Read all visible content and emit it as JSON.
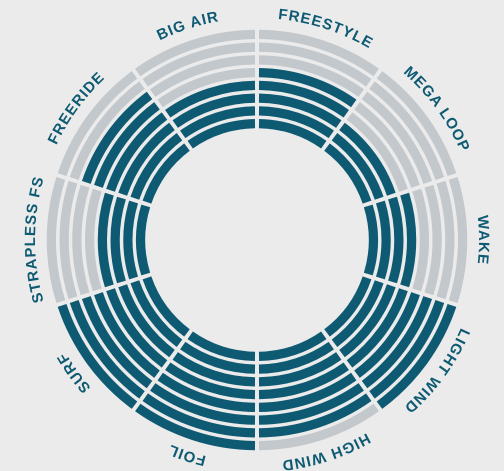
{
  "chart_data": {
    "type": "radial-rating",
    "categories": [
      "FREESTYLE",
      "MEGA LOOP",
      "WAKE",
      "LIGHT WIND",
      "HIGH WIND",
      "FOIL",
      "SURF",
      "STRAPLESS FS",
      "FREERIDE",
      "BIG AIR"
    ],
    "values": [
      5,
      3,
      4,
      8,
      7,
      8,
      8,
      4,
      6,
      4
    ],
    "rlim": [
      0,
      8
    ],
    "color": "#0e5a73",
    "track_color": "#c3c8cc"
  }
}
